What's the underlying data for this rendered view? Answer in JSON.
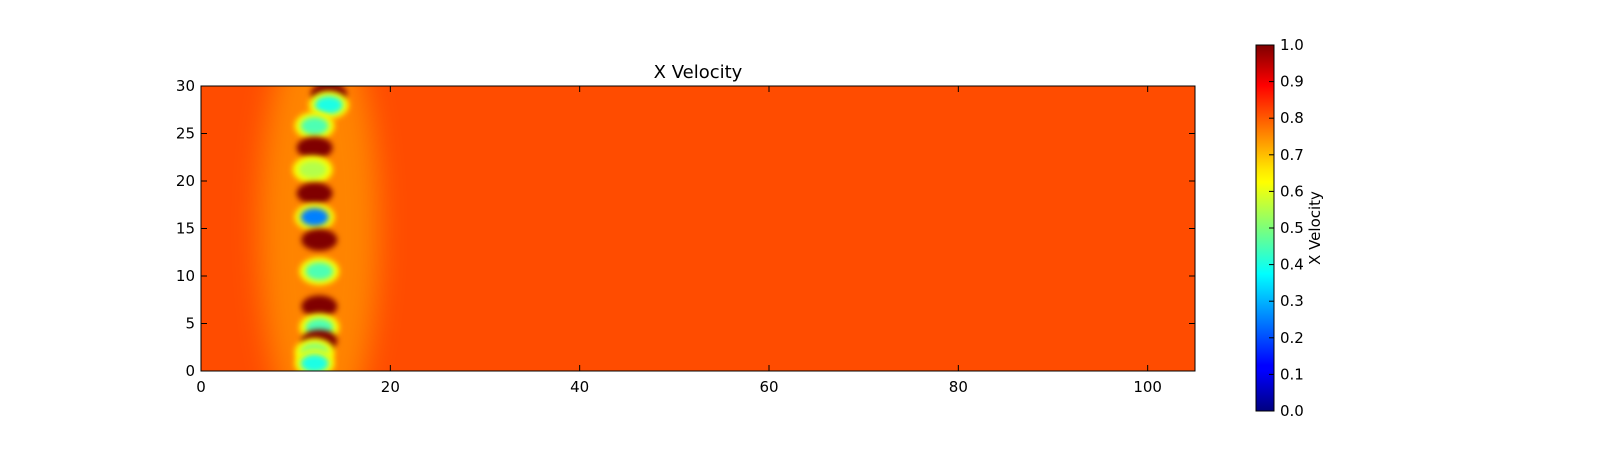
{
  "chart_data": {
    "type": "heatmap",
    "title": "X Velocity",
    "xlabel": "",
    "ylabel": "",
    "xlim": [
      0,
      105
    ],
    "ylim": [
      0,
      30
    ],
    "x_ticks": [
      0,
      20,
      40,
      60,
      80,
      100
    ],
    "y_ticks": [
      0,
      5,
      10,
      15,
      20,
      25,
      30
    ],
    "grid": false,
    "colormap": "jet",
    "background_value": 0.8,
    "features": [
      {
        "x": 13.5,
        "y": 29.2,
        "value": 1.0
      },
      {
        "x": 13.5,
        "y": 28.0,
        "value": 0.4
      },
      {
        "x": 12.0,
        "y": 25.8,
        "value": 0.45
      },
      {
        "x": 12.0,
        "y": 23.5,
        "value": 1.0
      },
      {
        "x": 11.8,
        "y": 21.2,
        "value": 0.55
      },
      {
        "x": 12.0,
        "y": 18.7,
        "value": 1.0
      },
      {
        "x": 12.0,
        "y": 16.2,
        "value": 0.25
      },
      {
        "x": 12.5,
        "y": 13.8,
        "value": 1.0
      },
      {
        "x": 12.5,
        "y": 10.5,
        "value": 0.45
      },
      {
        "x": 12.5,
        "y": 6.8,
        "value": 1.0
      },
      {
        "x": 12.5,
        "y": 4.6,
        "value": 0.45
      },
      {
        "x": 12.5,
        "y": 3.2,
        "value": 1.0
      },
      {
        "x": 12.0,
        "y": 2.0,
        "value": 0.5
      },
      {
        "x": 12.0,
        "y": 0.8,
        "value": 0.4
      }
    ],
    "colorbar": {
      "label": "X Velocity",
      "range": [
        0.0,
        1.0
      ],
      "ticks": [
        "0.0",
        "0.1",
        "0.2",
        "0.3",
        "0.4",
        "0.5",
        "0.6",
        "0.7",
        "0.8",
        "0.9",
        "1.0"
      ]
    }
  },
  "colors": {
    "axis": "#000000",
    "background": "#ffffff"
  }
}
